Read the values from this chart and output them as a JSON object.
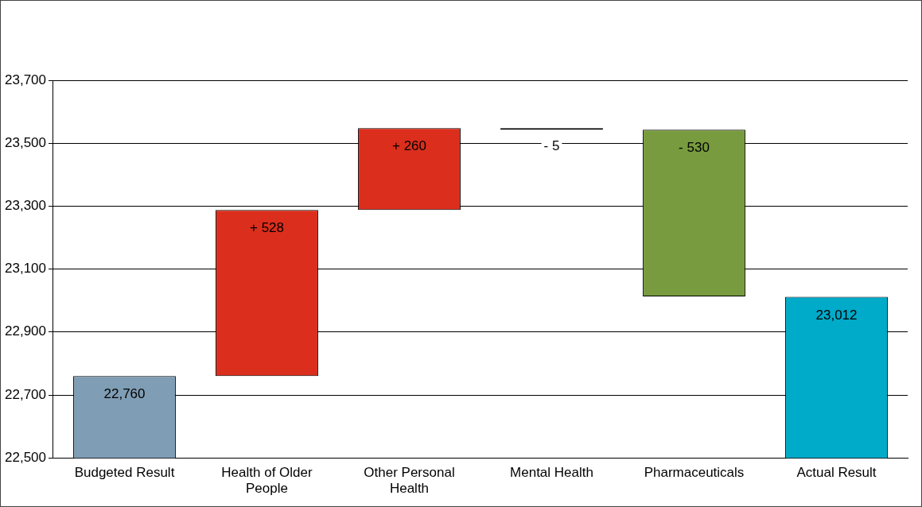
{
  "chart_data": {
    "type": "bar",
    "categories": [
      "Budgeted Result",
      "Health of Older People",
      "Other Personal Health",
      "Mental Health",
      "Pharmaceuticals",
      "Actual Result"
    ],
    "values": [
      22760,
      528,
      260,
      -5,
      -530,
      23012
    ],
    "base": [
      null,
      22760,
      23288,
      23548,
      23543,
      null
    ],
    "colors": [
      "#7f9db4",
      "#dc2e1c",
      "#dc2e1c",
      "#000000",
      "#779b3e",
      "#00aac9"
    ],
    "value_labels": [
      "22,760",
      "+ 528",
      "+ 260",
      "- 5",
      "- 530",
      "23,012"
    ],
    "ylim": [
      22500,
      23700
    ],
    "yticks": [
      {
        "value": 22500,
        "label": "22,500"
      },
      {
        "value": 22700,
        "label": "22,700"
      },
      {
        "value": 22900,
        "label": "22,900"
      },
      {
        "value": 23100,
        "label": "23,100"
      },
      {
        "value": 23300,
        "label": "23,300"
      },
      {
        "value": 23500,
        "label": "23,500"
      },
      {
        "value": 23700,
        "label": "23,700"
      }
    ],
    "grid": "y"
  }
}
